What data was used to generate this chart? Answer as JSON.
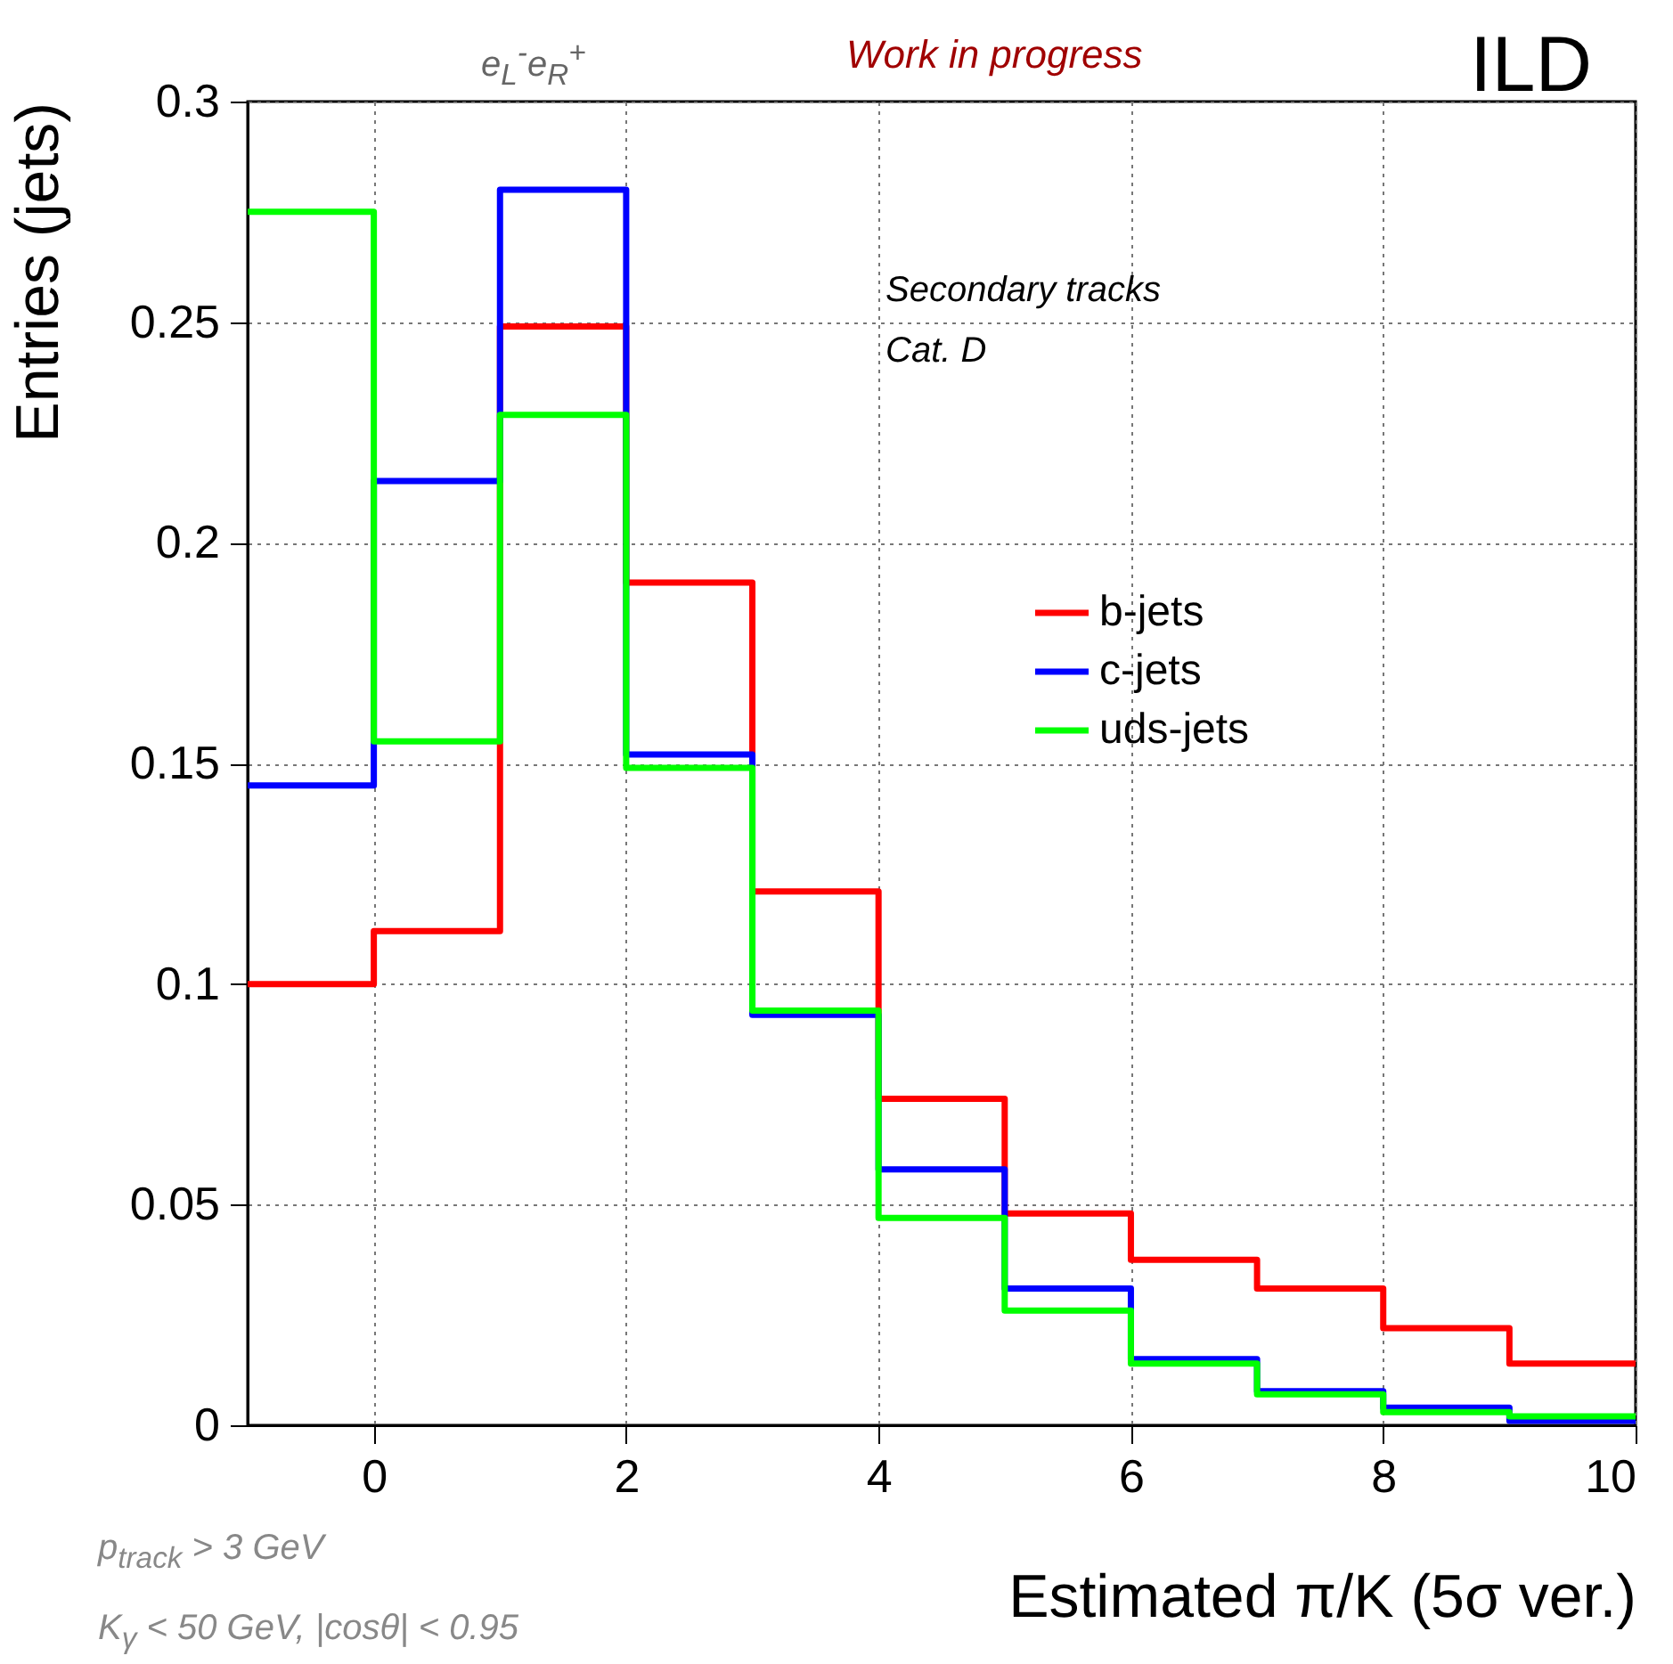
{
  "chart_data": {
    "type": "histogram",
    "xlabel": "Estimated π/K (5σ ver.)",
    "ylabel": "Entries (jets)",
    "bins": [
      -1,
      0,
      1,
      2,
      3,
      4,
      5,
      6,
      7,
      8,
      9,
      10
    ],
    "series": [
      {
        "name": "b-jets",
        "color": "#ff0000",
        "values": [
          0.1,
          0.112,
          0.249,
          0.191,
          0.121,
          0.074,
          0.048,
          0.0375,
          0.031,
          0.022,
          0.014
        ]
      },
      {
        "name": "c-jets",
        "color": "#0000ff",
        "values": [
          0.145,
          0.214,
          0.28,
          0.152,
          0.093,
          0.058,
          0.031,
          0.015,
          0.0077,
          0.004,
          0.001
        ]
      },
      {
        "name": "uds-jets",
        "color": "#00ff00",
        "values": [
          0.275,
          0.155,
          0.229,
          0.149,
          0.094,
          0.047,
          0.026,
          0.014,
          0.007,
          0.003,
          0.002
        ]
      }
    ],
    "xlim": [
      -1,
      10
    ],
    "xticks": [
      0,
      2,
      4,
      6,
      8,
      10
    ],
    "ylim": [
      0,
      0.3
    ],
    "yticks": [
      0,
      0.05,
      0.1,
      0.15,
      0.2,
      0.25,
      0.3
    ],
    "grid": true,
    "legend": "right",
    "annotations": [
      "e$_{L}$$^{-}$e$_{R}$$^{+}$",
      "Work in progress",
      "ILD",
      "Secondary tracks",
      "Cat. D",
      "p$_{track}$ > 3 GeV",
      "K$_{γ}$ < 50 GeV, |cosθ| < 0.95"
    ]
  }
}
